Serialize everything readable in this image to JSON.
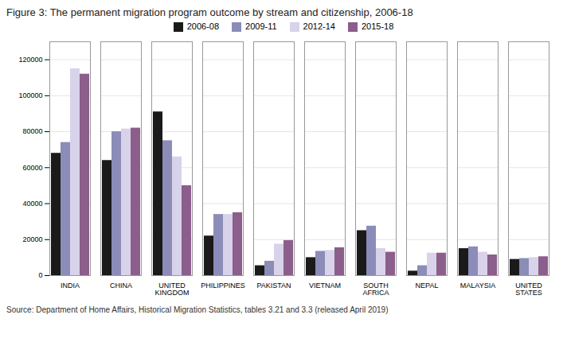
{
  "chart_data": {
    "type": "bar",
    "title": "Figure 3: The permanent migration program outcome by stream and citizenship, 2006-18",
    "caption": "Source: Department of Home Affairs, Historical Migration Statistics, tables 3.21 and 3.3 (released April 2019)",
    "categories": [
      "INDIA",
      "CHINA",
      "UNITED\nKINGDOM",
      "PHILIPPINES",
      "PAKISTAN",
      "VIETNAM",
      "SOUTH\nAFRICA",
      "NEPAL",
      "MALAYSIA",
      "UNITED\nSTATES"
    ],
    "series": [
      {
        "name": "2006-08",
        "color": "#1a1a1a",
        "values": [
          68000,
          64000,
          91000,
          22000,
          5500,
          10000,
          25000,
          2500,
          15000,
          9000
        ]
      },
      {
        "name": "2009-11",
        "color": "#8c8cb8",
        "values": [
          74000,
          80000,
          75000,
          34000,
          8000,
          13500,
          27500,
          5500,
          16000,
          9500
        ]
      },
      {
        "name": "2012-14",
        "color": "#d8d2ea",
        "values": [
          115000,
          81500,
          66000,
          34000,
          17500,
          14000,
          15000,
          12500,
          13000,
          10000
        ]
      },
      {
        "name": "2015-18",
        "color": "#8b5e8b",
        "values": [
          112000,
          82000,
          50000,
          35000,
          19500,
          15500,
          13000,
          12500,
          11500,
          10500
        ]
      }
    ],
    "ylim": [
      0,
      130000
    ],
    "yticks": [
      0,
      20000,
      40000,
      60000,
      80000,
      100000,
      120000
    ],
    "grid": true,
    "legend": "top"
  }
}
